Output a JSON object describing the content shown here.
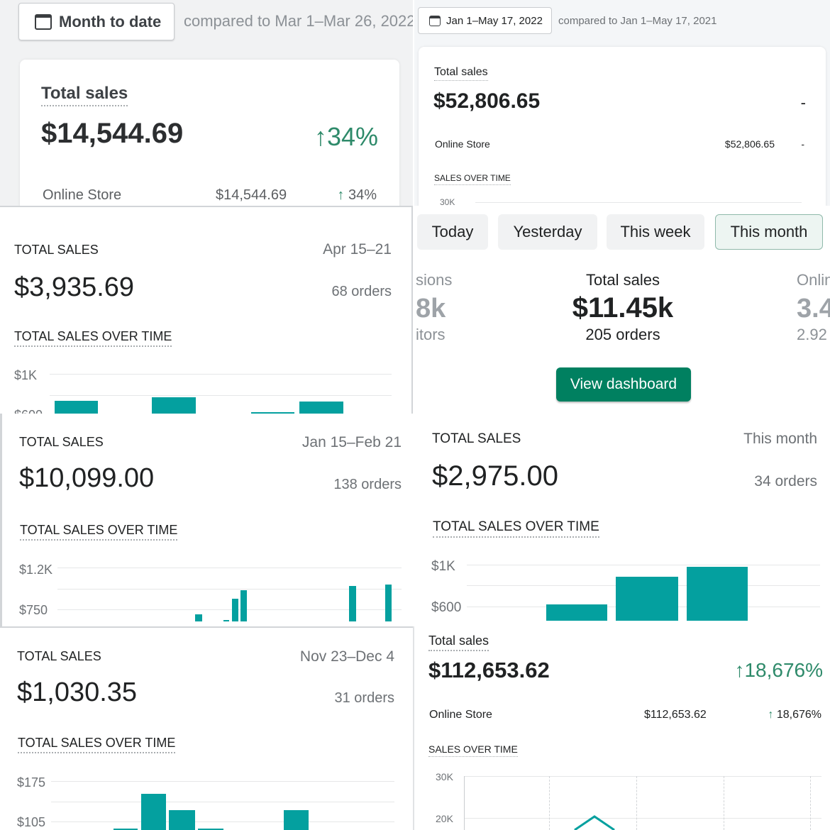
{
  "p1": {
    "date_button": "Month to date",
    "compare": "compared to Mar 1–Mar 26, 2022",
    "title": "Total sales",
    "value": "$14,544.69",
    "change": "34%",
    "channel": "Online Store",
    "channel_value": "$14,544.69",
    "channel_change": "34%"
  },
  "p2": {
    "date_button": "Jan 1–May 17, 2022",
    "compare": "compared to Jan 1–May 17, 2021",
    "title": "Total sales",
    "value": "$52,806.65",
    "change": "-",
    "channel": "Online Store",
    "channel_value": "$52,806.65",
    "channel_change": "-",
    "chart_title": "SALES OVER TIME",
    "ytick": "30K"
  },
  "p3": {
    "title": "TOTAL SALES",
    "range": "Apr 15–21",
    "value": "$3,935.69",
    "orders": "68 orders",
    "chart_title": "TOTAL SALES OVER TIME",
    "yticks": [
      "$1K",
      "$600"
    ]
  },
  "p4": {
    "tabs": [
      "Today",
      "Yesterday",
      "This week",
      "This month"
    ],
    "active_tab": "This month",
    "left_label": "sions",
    "left_value": "8k",
    "left_sub": "itors",
    "center_label": "Total sales",
    "center_value": "$11.45k",
    "center_sub": "205 orders",
    "right_label": "Onlin",
    "right_value": "3.4",
    "right_sub": "2.92",
    "button": "View dashboard",
    "accent": "#008060"
  },
  "p5": {
    "title": "TOTAL SALES",
    "range": "Jan 15–Feb 21",
    "value": "$10,099.00",
    "orders": "138 orders",
    "chart_title": "TOTAL SALES OVER TIME",
    "yticks": [
      "$1.2K",
      "$750"
    ]
  },
  "p6": {
    "title": "TOTAL SALES",
    "range": "This month",
    "value": "$2,975.00",
    "orders": "34 orders",
    "chart_title": "TOTAL SALES OVER TIME",
    "yticks": [
      "$1K",
      "$600"
    ]
  },
  "p7": {
    "title": "TOTAL SALES",
    "range": "Nov 23–Dec 4",
    "value": "$1,030.35",
    "orders": "31 orders",
    "chart_title": "TOTAL SALES OVER TIME",
    "yticks": [
      "$175",
      "$105"
    ]
  },
  "p8": {
    "title": "Total sales",
    "value": "$112,653.62",
    "change": "18,676%",
    "channel": "Online Store",
    "channel_value": "$112,653.62",
    "channel_change": "18,676%",
    "chart_title": "SALES OVER TIME",
    "yticks": [
      "30K",
      "20K"
    ]
  },
  "colors": {
    "bar": "#04a09f",
    "positive": "#2e8a6a"
  },
  "icons": [
    "calendar-icon",
    "arrow-up-icon"
  ]
}
